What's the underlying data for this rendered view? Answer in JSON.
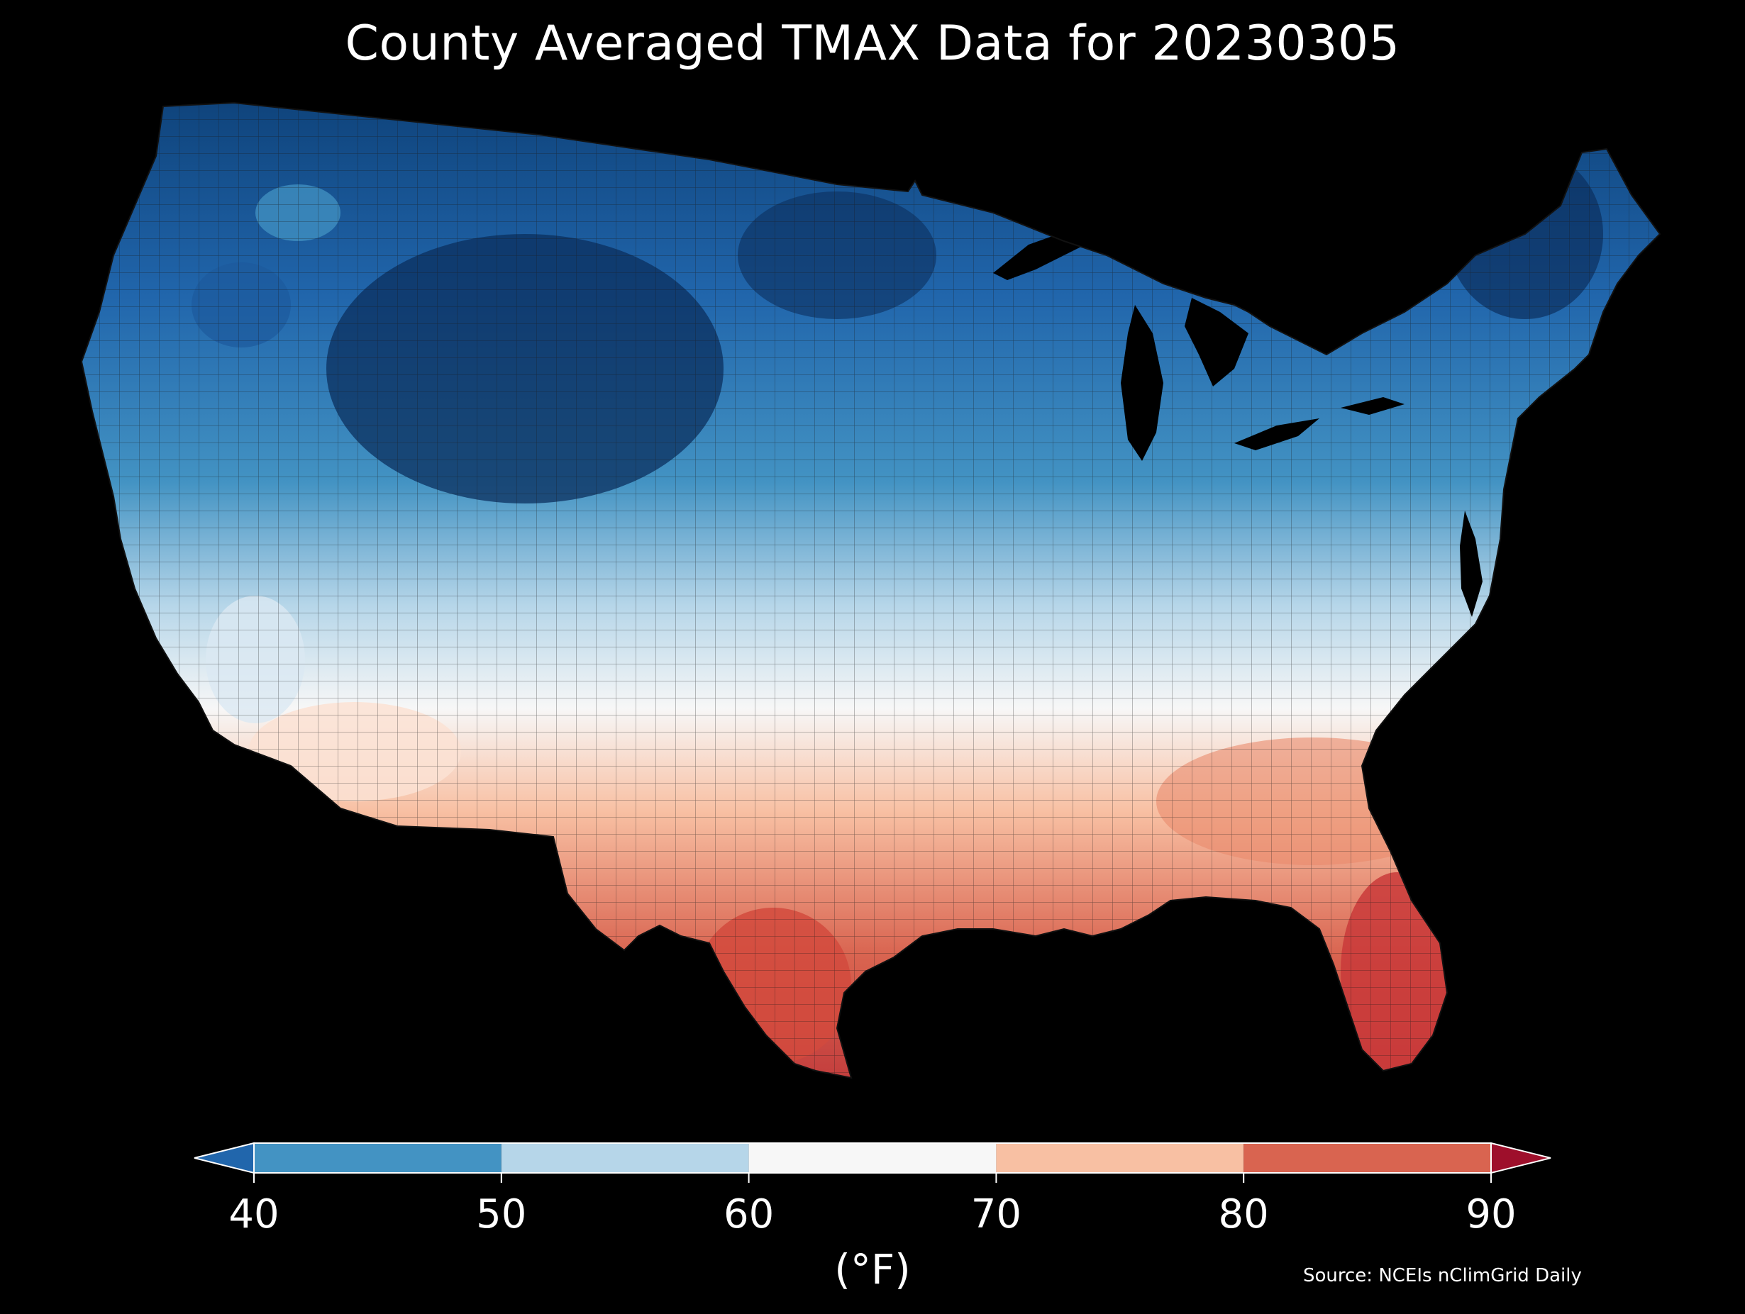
{
  "title": "County Averaged TMAX Data for 20230305",
  "colorbar": {
    "unit": "(°F)",
    "ticks": [
      "40",
      "50",
      "60",
      "70",
      "80",
      "90"
    ],
    "bins": [
      {
        "from": "<40",
        "color": "#2166ac"
      },
      {
        "from": "40-50",
        "color": "#4393c3"
      },
      {
        "from": "50-60",
        "color": "#b6d6e9"
      },
      {
        "from": "60-70",
        "color": "#f7f7f7"
      },
      {
        "from": "70-80",
        "color": "#f8c0a3"
      },
      {
        "from": "80-90",
        "color": "#d96450"
      },
      {
        "from": ">90",
        "color": "#9e0f2b"
      }
    ]
  },
  "source": "Source: NCEIs nClimGrid Daily",
  "map": {
    "region": "contiguous-united-states",
    "shading": "county-averaged-tmax",
    "colors": {
      "very_cold": "#0c3e74",
      "cold": "#2166ac",
      "cool": "#4393c3",
      "mild": "#b6d6e9",
      "neutral": "#f7f7f7",
      "warm": "#f8c0a3",
      "hot": "#d96450",
      "background": "#000000"
    }
  }
}
